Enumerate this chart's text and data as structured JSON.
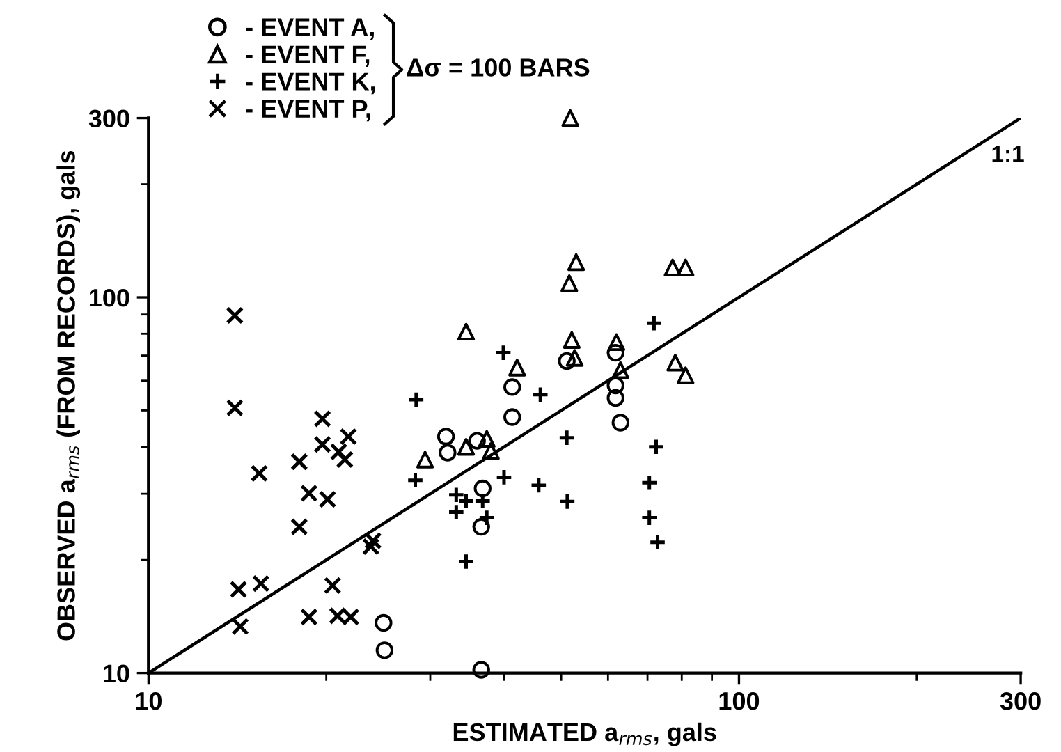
{
  "chart_data": {
    "type": "scatter",
    "xlabel": "ESTIMATED a$_{rms}$, gals",
    "ylabel": "OBSERVED a$_{rms}$ (FROM RECORDS), gals",
    "log": "xy",
    "xlim": [
      10,
      300
    ],
    "ylim": [
      10,
      300
    ],
    "xticks": [
      10,
      100,
      300
    ],
    "yticks": [
      10,
      300,
      100
    ],
    "grid": false,
    "legend": "top left",
    "legend_title": "Δσ = 100 BARS",
    "annotations": [
      {
        "text": "1:1",
        "x": 300,
        "y": 300
      }
    ],
    "series": [
      {
        "name": "- EVENT A,",
        "color": "#000000",
        "marker": "circle",
        "x": [
          25.0,
          25.1,
          36.6,
          31.9,
          32.1,
          36.8,
          36.6,
          36.0,
          41.3,
          41.3,
          51.1,
          61.8,
          61.8,
          61.8,
          63.0
        ],
        "values": [
          13.6,
          11.5,
          10.2,
          42.6,
          38.6,
          31.0,
          24.5,
          41.5,
          57.7,
          48.0,
          67.7,
          71.2,
          58.3,
          54.0,
          46.4
        ]
      },
      {
        "name": "- EVENT F,",
        "color": "#000000",
        "marker": "triangle",
        "x": [
          51.8,
          53.0,
          51.6,
          77.2,
          81.2,
          34.5,
          52.1,
          62.0,
          42.1,
          52.7,
          63.0,
          78.0,
          81.2,
          29.4,
          34.5,
          37.4,
          38.0
        ],
        "values": [
          300,
          124,
          109,
          120,
          120,
          81,
          77,
          76,
          65,
          69,
          64,
          67,
          62,
          37,
          40,
          42,
          39
        ]
      },
      {
        "name": "- EVENT K,",
        "color": "#000000",
        "marker": "cross",
        "x": [
          28.4,
          28.3,
          33.2,
          34.5,
          33.2,
          34.5,
          36.8,
          37.4,
          39.9,
          46.1,
          51.1,
          40.0,
          45.8,
          51.2,
          71.8,
          72.4,
          70.5,
          70.5,
          72.8
        ],
        "values": [
          53.4,
          32.6,
          29.8,
          28.7,
          26.8,
          19.8,
          28.7,
          25.9,
          71.2,
          55.1,
          42.3,
          33.2,
          31.6,
          28.6,
          85.3,
          40.0,
          32.1,
          25.9,
          22.3
        ]
      },
      {
        "name": "- EVENT P,",
        "color": "#000000",
        "marker": "x",
        "x": [
          14.0,
          14.0,
          15.4,
          18.0,
          19.7,
          19.7,
          18.7,
          20.1,
          18.0,
          21.0,
          21.8,
          21.5,
          24.0,
          23.8,
          14.2,
          15.5,
          14.3,
          18.7,
          20.5,
          20.9,
          22.0
        ],
        "values": [
          89.5,
          50.8,
          34.0,
          36.5,
          47.5,
          40.6,
          30.1,
          29.0,
          24.5,
          38.8,
          42.6,
          37.0,
          22.5,
          21.7,
          16.7,
          17.3,
          13.3,
          14.1,
          17.1,
          14.2,
          14.1
        ]
      },
      {
        "type": "line",
        "color": "#000000",
        "line_style": "solid",
        "x": [
          10,
          300
        ],
        "values": [
          10,
          300
        ]
      }
    ]
  }
}
